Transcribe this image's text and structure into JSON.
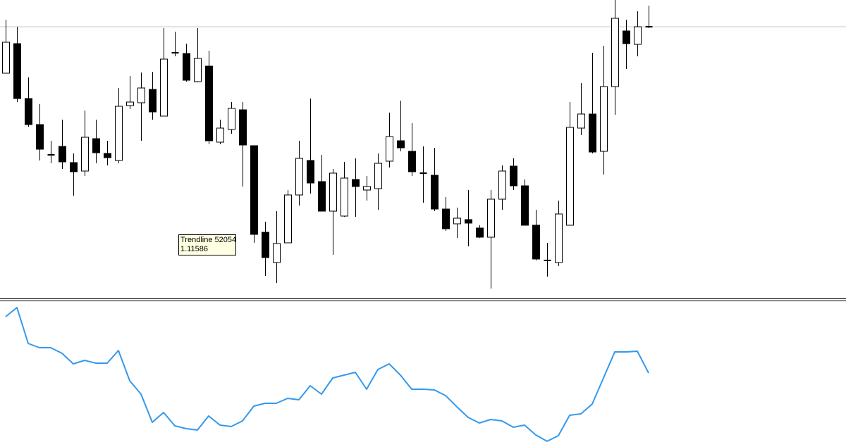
{
  "chart_data": [
    {
      "type": "candlestick",
      "open": [
        326,
        368,
        290,
        253,
        209,
        222,
        199,
        187,
        233,
        212,
        202,
        280,
        284,
        303,
        265,
        355,
        354,
        314,
        336,
        228,
        246,
        274,
        223,
        100,
        57,
        85,
        153,
        202,
        172,
        130,
        123,
        175,
        160,
        162,
        201,
        230,
        215,
        184,
        181,
        133,
        112,
        118,
        106,
        93,
        147,
        194,
        166,
        110,
        59,
        57,
        110,
        248,
        268,
        215,
        307,
        386,
        367,
        392
      ],
      "high": [
        402,
        392,
        320,
        282,
        230,
        260,
        212,
        273,
        260,
        230,
        305,
        322,
        327,
        328,
        390,
        385,
        368,
        390,
        358,
        260,
        285,
        285,
        223,
        115,
        130,
        160,
        230,
        290,
        210,
        190,
        200,
        205,
        180,
        212,
        270,
        287,
        255,
        222,
        220,
        150,
        135,
        160,
        110,
        160,
        195,
        205,
        175,
        132,
        85,
        145,
        285,
        312,
        355,
        365,
        430,
        402,
        414,
        422
      ],
      "low": [
        326,
        285,
        250,
        202,
        198,
        190,
        152,
        180,
        198,
        195,
        198,
        275,
        230,
        260,
        265,
        350,
        314,
        313,
        225,
        225,
        240,
        165,
        85,
        38,
        28,
        85,
        138,
        155,
        130,
        68,
        122,
        122,
        145,
        132,
        192,
        215,
        180,
        142,
        130,
        102,
        92,
        80,
        92,
        20,
        132,
        160,
        110,
        60,
        37,
        52,
        110,
        238,
        212,
        182,
        267,
        332,
        350,
        390
      ],
      "close": [
        370,
        290,
        253,
        218,
        210,
        200,
        186,
        235,
        213,
        206,
        279,
        285,
        305,
        271,
        346,
        354,
        316,
        347,
        230,
        248,
        276,
        224,
        97,
        64,
        84,
        153,
        205,
        170,
        130,
        184,
        177,
        165,
        165,
        198,
        236,
        220,
        186,
        183,
        133,
        105,
        120,
        113,
        93,
        147,
        187,
        166,
        110,
        62,
        60,
        126,
        249,
        268,
        214,
        307,
        404,
        368,
        392,
        392
      ],
      "ylim": [
        0,
        430
      ],
      "hline": 392,
      "annotation": [
        "Trendline 52054",
        "1.11586"
      ]
    },
    {
      "type": "line",
      "color": "#3399ee",
      "values": [
        178,
        191,
        140,
        134,
        134,
        126,
        111,
        116,
        112,
        112,
        130,
        87,
        68,
        28,
        42,
        23,
        19,
        17,
        37,
        24,
        22,
        30,
        51,
        55,
        55,
        62,
        60,
        80,
        68,
        91,
        95,
        99,
        75,
        103,
        111,
        95,
        75,
        75,
        74,
        66,
        50,
        35,
        27,
        32,
        30,
        21,
        24,
        10,
        1,
        9,
        38,
        40,
        54,
        91,
        128,
        128,
        129,
        98
      ],
      "ylim": [
        0,
        200
      ]
    }
  ]
}
